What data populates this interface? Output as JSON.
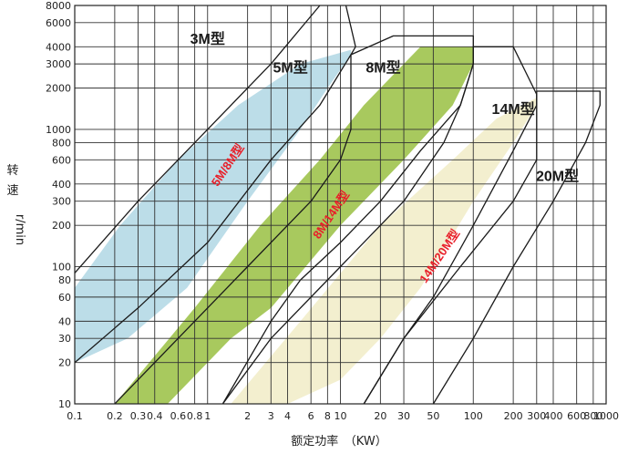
{
  "chart_data": {
    "type": "area",
    "title": "",
    "xlabel": "额定功率　（KW）",
    "ylabel_chars": [
      "转",
      "速",
      "r/min"
    ],
    "x_scale": "log",
    "y_scale": "log",
    "xlim": [
      0.1,
      1000
    ],
    "ylim": [
      10,
      8000
    ],
    "grid": true,
    "x_ticks": [
      {
        "value": 0.1,
        "label": "0.1"
      },
      {
        "value": 0.2,
        "label": "0.2"
      },
      {
        "value": 0.3,
        "label": "0.3"
      },
      {
        "value": 0.4,
        "label": "0.4"
      },
      {
        "value": 0.6,
        "label": "0.6"
      },
      {
        "value": 0.8,
        "label": "0.8"
      },
      {
        "value": 1,
        "label": "1"
      },
      {
        "value": 2,
        "label": "2"
      },
      {
        "value": 3,
        "label": "3"
      },
      {
        "value": 4,
        "label": "4"
      },
      {
        "value": 6,
        "label": "6"
      },
      {
        "value": 8,
        "label": "8"
      },
      {
        "value": 10,
        "label": "10"
      },
      {
        "value": 20,
        "label": "20"
      },
      {
        "value": 30,
        "label": "30"
      },
      {
        "value": 50,
        "label": "50"
      },
      {
        "value": 100,
        "label": "100"
      },
      {
        "value": 200,
        "label": "200"
      },
      {
        "value": 300,
        "label": "300"
      },
      {
        "value": 400,
        "label": "400"
      },
      {
        "value": 600,
        "label": "600"
      },
      {
        "value": 800,
        "label": "800"
      },
      {
        "value": 1000,
        "label": "1000"
      }
    ],
    "y_ticks": [
      {
        "value": 10,
        "label": "10"
      },
      {
        "value": 20,
        "label": "20"
      },
      {
        "value": 30,
        "label": "30"
      },
      {
        "value": 40,
        "label": "40"
      },
      {
        "value": 60,
        "label": "60"
      },
      {
        "value": 80,
        "label": "80"
      },
      {
        "value": 100,
        "label": "100"
      },
      {
        "value": 200,
        "label": "200"
      },
      {
        "value": 300,
        "label": "300"
      },
      {
        "value": 400,
        "label": "400"
      },
      {
        "value": 600,
        "label": "600"
      },
      {
        "value": 800,
        "label": "800"
      },
      {
        "value": 1000,
        "label": "1000"
      },
      {
        "value": 2000,
        "label": "2000"
      },
      {
        "value": 3000,
        "label": "3000"
      },
      {
        "value": 4000,
        "label": "4000"
      },
      {
        "value": 6000,
        "label": "6000"
      },
      {
        "value": 8000,
        "label": "8000"
      }
    ],
    "overlap_bands": [
      {
        "name": "5M/8M型",
        "color": "#bcdde8",
        "polygon": [
          [
            0.1,
            70
          ],
          [
            0.22,
            200
          ],
          [
            0.6,
            600
          ],
          [
            1.7,
            1500
          ],
          [
            5,
            3000
          ],
          [
            12,
            3800
          ],
          [
            12,
            3500
          ],
          [
            8,
            2000
          ],
          [
            5,
            1000
          ],
          [
            2,
            300
          ],
          [
            0.7,
            70
          ],
          [
            0.25,
            30
          ],
          [
            0.1,
            20
          ]
        ]
      },
      {
        "name": "8M/14M型",
        "color": "#a8c95e",
        "polygon": [
          [
            0.2,
            10
          ],
          [
            0.8,
            50
          ],
          [
            2.5,
            200
          ],
          [
            7,
            600
          ],
          [
            15,
            1500
          ],
          [
            40,
            4000
          ],
          [
            100,
            4000
          ],
          [
            100,
            3000
          ],
          [
            70,
            1500
          ],
          [
            30,
            600
          ],
          [
            10,
            200
          ],
          [
            3,
            50
          ],
          [
            1.5,
            30
          ],
          [
            0.5,
            10
          ]
        ]
      },
      {
        "name": "14M/20M型",
        "color": "#f3efcf",
        "polygon": [
          [
            1.5,
            10
          ],
          [
            5,
            40
          ],
          [
            20,
            200
          ],
          [
            70,
            600
          ],
          [
            150,
            1200
          ],
          [
            300,
            1700
          ],
          [
            300,
            1500
          ],
          [
            200,
            800
          ],
          [
            100,
            300
          ],
          [
            40,
            70
          ],
          [
            20,
            30
          ],
          [
            10,
            15
          ],
          [
            4,
            10
          ]
        ]
      }
    ],
    "model_outlines": [
      {
        "name": "3M型",
        "path": [
          [
            0.1,
            90
          ],
          [
            0.3,
            300
          ],
          [
            1,
            1000
          ],
          [
            3,
            3000
          ],
          [
            7,
            8000
          ]
        ]
      },
      {
        "name": "5M型",
        "path": [
          [
            0.1,
            20
          ],
          [
            0.3,
            50
          ],
          [
            1,
            150
          ],
          [
            3,
            600
          ],
          [
            7,
            1500
          ],
          [
            12,
            3500
          ],
          [
            13,
            4000
          ],
          [
            11,
            8000
          ]
        ]
      },
      {
        "name": "8M型",
        "path": [
          [
            0.2,
            10
          ],
          [
            0.6,
            30
          ],
          [
            2,
            100
          ],
          [
            6,
            300
          ],
          [
            10,
            600
          ],
          [
            12,
            1000
          ],
          [
            12,
            3500
          ],
          [
            25,
            4800
          ],
          [
            100,
            4800
          ],
          [
            100,
            3000
          ],
          [
            80,
            1500
          ],
          [
            40,
            700
          ],
          [
            20,
            300
          ],
          [
            10,
            150
          ],
          [
            5,
            80
          ],
          [
            3,
            40
          ],
          [
            1.3,
            10
          ]
        ]
      },
      {
        "name": "14M型",
        "path": [
          [
            1.3,
            10
          ],
          [
            3,
            30
          ],
          [
            10,
            100
          ],
          [
            30,
            300
          ],
          [
            60,
            800
          ],
          [
            80,
            1500
          ],
          [
            100,
            3000
          ],
          [
            100,
            4000
          ],
          [
            200,
            4000
          ],
          [
            300,
            1800
          ],
          [
            300,
            1500
          ],
          [
            200,
            700
          ],
          [
            100,
            200
          ],
          [
            50,
            60
          ],
          [
            30,
            30
          ],
          [
            15,
            10
          ]
        ]
      },
      {
        "name": "20M型",
        "path": [
          [
            15,
            10
          ],
          [
            30,
            30
          ],
          [
            80,
            100
          ],
          [
            200,
            300
          ],
          [
            300,
            600
          ],
          [
            300,
            1900
          ],
          [
            900,
            1900
          ],
          [
            900,
            1500
          ],
          [
            700,
            800
          ],
          [
            400,
            300
          ],
          [
            200,
            100
          ],
          [
            100,
            30
          ],
          [
            50,
            10
          ]
        ]
      }
    ],
    "model_labels": [
      {
        "text": "3M型",
        "x": 1.0,
        "y": 4200
      },
      {
        "text": "5M型",
        "x": 4.2,
        "y": 2600
      },
      {
        "text": "8M型",
        "x": 21,
        "y": 2600
      },
      {
        "text": "14M型",
        "x": 200,
        "y": 1300
      },
      {
        "text": "20M型",
        "x": 430,
        "y": 420
      }
    ],
    "band_labels": [
      {
        "text": "5M/8M型",
        "x": 1.5,
        "y": 530,
        "angle": -56
      },
      {
        "text": "8M/14M型",
        "x": 9.0,
        "y": 230,
        "angle": -56
      },
      {
        "text": "14M/20M型",
        "x": 59,
        "y": 115,
        "angle": -56
      }
    ]
  }
}
